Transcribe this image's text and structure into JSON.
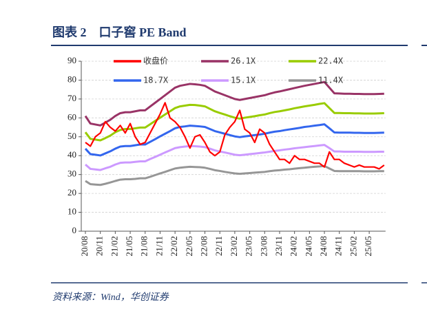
{
  "chart_data": {
    "type": "line",
    "title": "图表 2　口子窖 PE Band",
    "source": "资料来源：Wind，华创证券",
    "categories": [
      "20/08",
      null,
      null,
      "20/11",
      null,
      null,
      "21/02",
      null,
      null,
      "21/05",
      null,
      null,
      "21/08",
      null,
      null,
      "21/11",
      null,
      null,
      "22/02",
      null,
      null,
      "22/05",
      null,
      null,
      "22/08",
      null,
      null,
      "22/11",
      null,
      null,
      "23/02",
      null,
      null,
      "23/05",
      null,
      null,
      "23/08",
      null,
      null,
      "23/11",
      null,
      null,
      "24/02",
      null,
      null,
      "24/05",
      null,
      null,
      "24/08",
      null,
      null,
      "24/11",
      null,
      null,
      "25/02",
      null,
      null,
      "25/05",
      null,
      null,
      null
    ],
    "ylim": [
      0,
      90
    ],
    "yticks": [
      0,
      10,
      20,
      30,
      40,
      50,
      60,
      70,
      80,
      90
    ],
    "grid": true,
    "legend": "top",
    "series": [
      {
        "name": "收盘价",
        "color": "#ff0000",
        "values": [
          47,
          45,
          50,
          52,
          58,
          55,
          53,
          56,
          52,
          57,
          50,
          46,
          47,
          52,
          57,
          62,
          68,
          60,
          58,
          55,
          50,
          44,
          50,
          51,
          47,
          42,
          40,
          42,
          51,
          55,
          58,
          64,
          54,
          52,
          47,
          54,
          52,
          46,
          42,
          38,
          38,
          36,
          40,
          38,
          38,
          37,
          36,
          36,
          34,
          42,
          38,
          38,
          36,
          35,
          34,
          35,
          34,
          34,
          34,
          33,
          35
        ]
      },
      {
        "name": "26.1X",
        "color": "#993366",
        "values": [
          61,
          57,
          56.5,
          56,
          57.5,
          59,
          61,
          62.5,
          63,
          63,
          63.5,
          64,
          64,
          66,
          68,
          70,
          72,
          74,
          76,
          77,
          77.5,
          78,
          77.8,
          77.5,
          77,
          75.5,
          74,
          73,
          72,
          71,
          70,
          69.5,
          70,
          70.5,
          71,
          71.5,
          72,
          72.8,
          73.5,
          74,
          74.6,
          75.2,
          75.8,
          76.4,
          77,
          77.5,
          78,
          78.5,
          79,
          76,
          73,
          72.9,
          72.8,
          72.8,
          72.7,
          72.7,
          72.6,
          72.6,
          72.6,
          72.7,
          72.8
        ]
      },
      {
        "name": "22.4X",
        "color": "#99cc00",
        "values": [
          52.4,
          48.9,
          48.5,
          48.1,
          49.3,
          50.6,
          52.4,
          53.6,
          54.1,
          54.1,
          54.5,
          54.9,
          54.9,
          56.6,
          58.4,
          60.1,
          61.8,
          63.5,
          65.2,
          66.1,
          66.5,
          66.9,
          66.8,
          66.5,
          66.1,
          64.8,
          63.5,
          62.6,
          61.8,
          60.9,
          60.1,
          59.6,
          60.1,
          60.5,
          60.9,
          61.4,
          61.8,
          62.5,
          63.1,
          63.5,
          64.0,
          64.5,
          65.1,
          65.6,
          66.1,
          66.5,
          66.9,
          67.4,
          67.8,
          65.2,
          62.6,
          62.6,
          62.5,
          62.5,
          62.4,
          62.4,
          62.3,
          62.3,
          62.3,
          62.4,
          62.5
        ]
      },
      {
        "name": "18.7X",
        "color": "#3366ee",
        "values": [
          43.7,
          40.8,
          40.5,
          40.1,
          41.2,
          42.3,
          43.7,
          44.8,
          45.1,
          45.1,
          45.5,
          45.9,
          45.9,
          47.3,
          48.7,
          50.2,
          51.6,
          53.0,
          54.5,
          55.2,
          55.5,
          55.9,
          55.7,
          55.5,
          55.2,
          54.1,
          53.0,
          52.3,
          51.6,
          50.9,
          50.2,
          49.8,
          50.2,
          50.5,
          50.9,
          51.2,
          51.6,
          52.2,
          52.7,
          53.0,
          53.5,
          53.9,
          54.3,
          54.7,
          55.2,
          55.5,
          55.9,
          56.2,
          56.6,
          54.5,
          52.3,
          52.2,
          52.2,
          52.2,
          52.1,
          52.1,
          52.0,
          52.0,
          52.0,
          52.1,
          52.2
        ]
      },
      {
        "name": "15.1X",
        "color": "#cc99ff",
        "values": [
          35.3,
          33.0,
          32.7,
          32.4,
          33.3,
          34.1,
          35.3,
          36.2,
          36.4,
          36.4,
          36.7,
          37.0,
          37.0,
          38.2,
          39.3,
          40.5,
          41.7,
          42.8,
          44.0,
          44.5,
          44.8,
          45.1,
          45.0,
          44.8,
          44.5,
          43.7,
          42.8,
          42.2,
          41.7,
          41.1,
          40.5,
          40.2,
          40.5,
          40.8,
          41.1,
          41.4,
          41.7,
          42.1,
          42.5,
          42.8,
          43.2,
          43.5,
          43.9,
          44.2,
          44.5,
          44.8,
          45.1,
          45.4,
          45.7,
          44.0,
          42.2,
          42.2,
          42.1,
          42.1,
          42.1,
          42.1,
          42.0,
          42.0,
          42.0,
          42.1,
          42.1
        ]
      },
      {
        "name": "11.4X",
        "color": "#969696",
        "values": [
          26.6,
          24.9,
          24.7,
          24.5,
          25.1,
          25.8,
          26.6,
          27.3,
          27.5,
          27.5,
          27.7,
          28.0,
          28.0,
          28.8,
          29.7,
          30.6,
          31.4,
          32.3,
          33.2,
          33.6,
          33.9,
          34.1,
          34.0,
          33.9,
          33.6,
          33.0,
          32.3,
          31.9,
          31.4,
          31.0,
          30.6,
          30.4,
          30.6,
          30.8,
          31.0,
          31.2,
          31.4,
          31.8,
          32.1,
          32.3,
          32.6,
          32.8,
          33.1,
          33.4,
          33.6,
          33.9,
          34.1,
          34.3,
          34.5,
          33.2,
          31.9,
          31.8,
          31.8,
          31.8,
          31.8,
          31.8,
          31.7,
          31.7,
          31.7,
          31.8,
          31.8
        ]
      }
    ]
  }
}
